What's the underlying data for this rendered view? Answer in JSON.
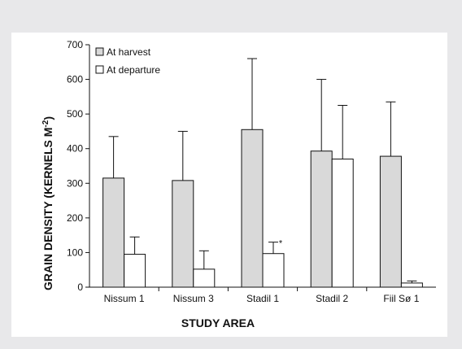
{
  "chart_data": {
    "type": "bar",
    "title": "",
    "xlabel": "STUDY AREA",
    "ylabel_main": "GRAIN DENSITY (KERNELS M",
    "ylabel_sup": "-2",
    "ylabel_end": ")",
    "ylim": [
      0,
      700
    ],
    "yticks": [
      "0",
      "100",
      "200",
      "300",
      "400",
      "500",
      "600",
      "700"
    ],
    "grid": false,
    "legend_position": "top-left",
    "categories": [
      "Nissum 1",
      "Nissum 3",
      "Stadil 1",
      "Stadil 2",
      "Fiil Sø 1"
    ],
    "series": [
      {
        "name": "At harvest",
        "color": "#d9d9d9",
        "values": [
          315,
          308,
          455,
          393,
          378
        ],
        "error_upper": [
          435,
          450,
          660,
          600,
          535
        ]
      },
      {
        "name": "At departure",
        "color": "#ffffff",
        "values": [
          95,
          52,
          97,
          370,
          12
        ],
        "error_upper": [
          145,
          105,
          130,
          525,
          18
        ]
      }
    ],
    "annotations": [
      {
        "category": "Stadil 1",
        "series": "At departure",
        "text": "*"
      }
    ]
  }
}
